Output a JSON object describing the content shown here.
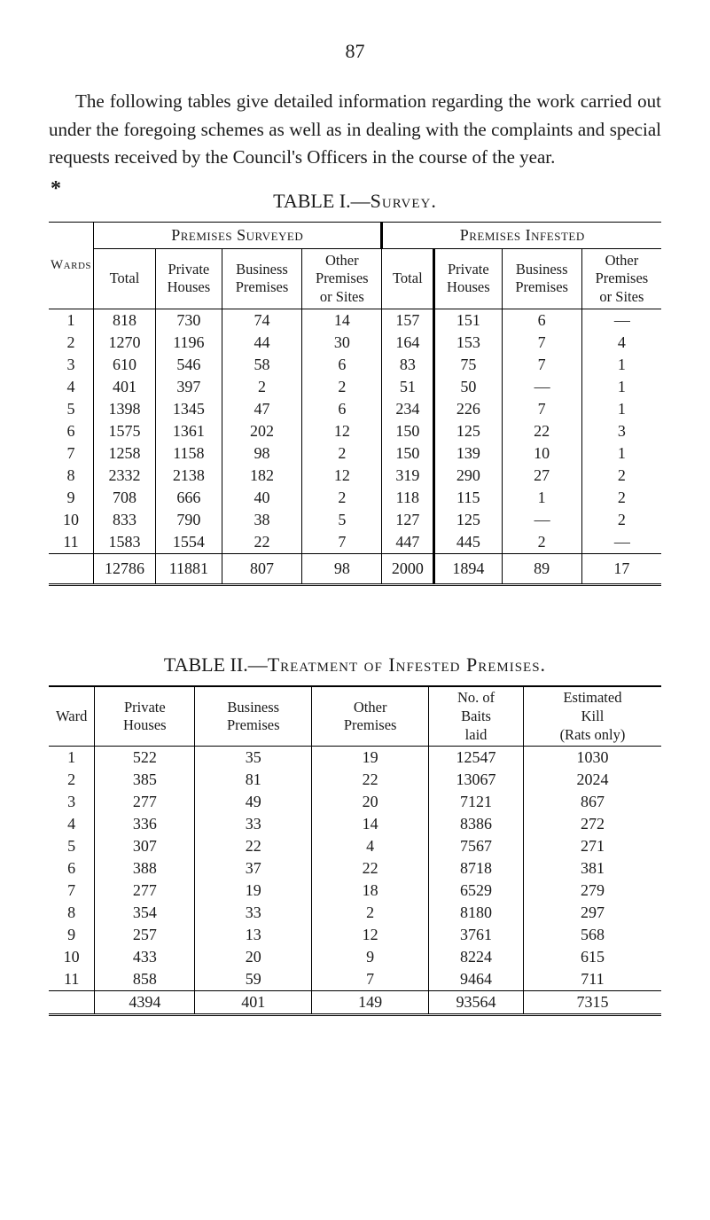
{
  "page_number": "87",
  "intro_text": "The following tables give detailed information regarding the work carried out under the foregoing schemes as well as in dealing with the complaints and special requests received by the Council's Officers in the course of the year.",
  "table1": {
    "title_prefix": "TABLE I.—",
    "title_smallcaps": "Survey.",
    "super_headers": [
      "Premises Surveyed",
      "Premises Infested"
    ],
    "wards_label": "Wards",
    "columns": [
      "Total",
      "Private Houses",
      "Business Premises",
      "Other Premises or Sites",
      "Total",
      "Private Houses",
      "Business Premises",
      "Other Premises or Sites"
    ],
    "rows": [
      {
        "ward": "1",
        "c": [
          "818",
          "730",
          "74",
          "14",
          "157",
          "151",
          "6",
          "—"
        ]
      },
      {
        "ward": "2",
        "c": [
          "1270",
          "1196",
          "44",
          "30",
          "164",
          "153",
          "7",
          "4"
        ]
      },
      {
        "ward": "3",
        "c": [
          "610",
          "546",
          "58",
          "6",
          "83",
          "75",
          "7",
          "1"
        ]
      },
      {
        "ward": "4",
        "c": [
          "401",
          "397",
          "2",
          "2",
          "51",
          "50",
          "—",
          "1"
        ]
      },
      {
        "ward": "5",
        "c": [
          "1398",
          "1345",
          "47",
          "6",
          "234",
          "226",
          "7",
          "1"
        ]
      },
      {
        "ward": "6",
        "c": [
          "1575",
          "1361",
          "202",
          "12",
          "150",
          "125",
          "22",
          "3"
        ]
      },
      {
        "ward": "7",
        "c": [
          "1258",
          "1158",
          "98",
          "2",
          "150",
          "139",
          "10",
          "1"
        ]
      },
      {
        "ward": "8",
        "c": [
          "2332",
          "2138",
          "182",
          "12",
          "319",
          "290",
          "27",
          "2"
        ]
      },
      {
        "ward": "9",
        "c": [
          "708",
          "666",
          "40",
          "2",
          "118",
          "115",
          "1",
          "2"
        ]
      },
      {
        "ward": "10",
        "c": [
          "833",
          "790",
          "38",
          "5",
          "127",
          "125",
          "—",
          "2"
        ]
      },
      {
        "ward": "11",
        "c": [
          "1583",
          "1554",
          "22",
          "7",
          "447",
          "445",
          "2",
          "—"
        ]
      }
    ],
    "totals": [
      "12786",
      "11881",
      "807",
      "98",
      "2000",
      "1894",
      "89",
      "17"
    ]
  },
  "table2": {
    "title_prefix": "TABLE II.—",
    "title_smallcaps": "Treatment of Infested Premises.",
    "columns": [
      "Ward",
      "Private Houses",
      "Business Premises",
      "Other Premises",
      "No. of Baits laid",
      "Estimated Kill (Rats only)"
    ],
    "rows": [
      {
        "c": [
          "1",
          "522",
          "35",
          "19",
          "12547",
          "1030"
        ]
      },
      {
        "c": [
          "2",
          "385",
          "81",
          "22",
          "13067",
          "2024"
        ]
      },
      {
        "c": [
          "3",
          "277",
          "49",
          "20",
          "7121",
          "867"
        ]
      },
      {
        "c": [
          "4",
          "336",
          "33",
          "14",
          "8386",
          "272"
        ]
      },
      {
        "c": [
          "5",
          "307",
          "22",
          "4",
          "7567",
          "271"
        ]
      },
      {
        "c": [
          "6",
          "388",
          "37",
          "22",
          "8718",
          "381"
        ]
      },
      {
        "c": [
          "7",
          "277",
          "19",
          "18",
          "6529",
          "279"
        ]
      },
      {
        "c": [
          "8",
          "354",
          "33",
          "2",
          "8180",
          "297"
        ]
      },
      {
        "c": [
          "9",
          "257",
          "13",
          "12",
          "3761",
          "568"
        ]
      },
      {
        "c": [
          "10",
          "433",
          "20",
          "9",
          "8224",
          "615"
        ]
      },
      {
        "c": [
          "11",
          "858",
          "59",
          "7",
          "9464",
          "711"
        ]
      }
    ],
    "totals": [
      "",
      "4394",
      "401",
      "149",
      "93564",
      "7315"
    ]
  }
}
